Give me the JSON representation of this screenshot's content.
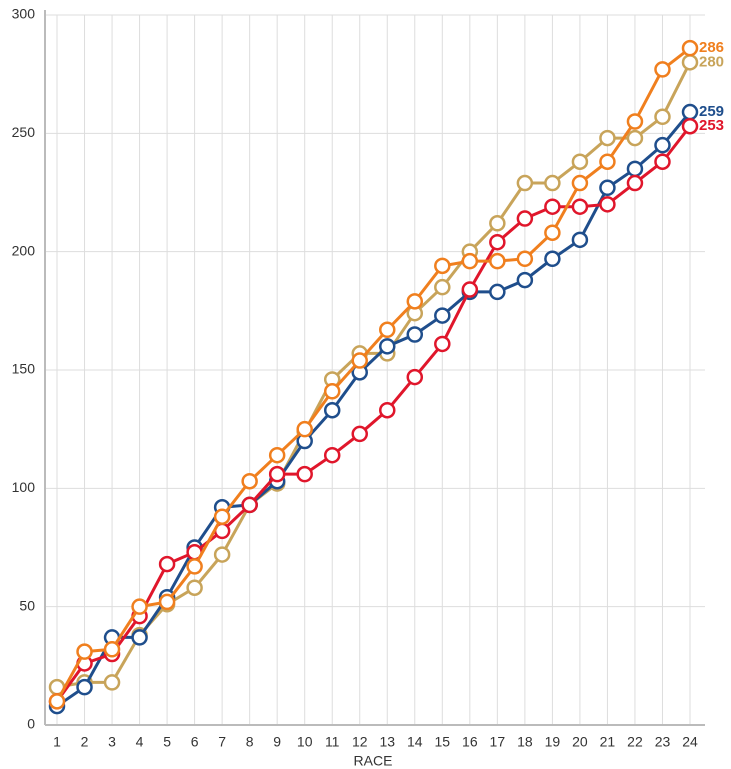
{
  "chart_data": {
    "type": "line",
    "x_label": "RACE",
    "categories": [
      "1",
      "2",
      "3",
      "4",
      "5",
      "6",
      "7",
      "8",
      "9",
      "10",
      "11",
      "12",
      "13",
      "14",
      "15",
      "16",
      "17",
      "18",
      "19",
      "20",
      "21",
      "22",
      "23",
      "24"
    ],
    "ylim": [
      0,
      300
    ],
    "yticks": [
      0,
      50,
      100,
      150,
      200,
      250,
      300
    ],
    "grid": true,
    "series": [
      {
        "color": "#c8a45a",
        "values": [
          16,
          18,
          18,
          38,
          51,
          58,
          72,
          93,
          102,
          124,
          146,
          157,
          157,
          174,
          185,
          200,
          212,
          229,
          229,
          238,
          248,
          248,
          257,
          280
        ]
      },
      {
        "color": "#1f4e8c",
        "values": [
          8,
          16,
          37,
          37,
          54,
          75,
          92,
          93,
          103,
          120,
          133,
          149,
          160,
          165,
          173,
          183,
          183,
          188,
          197,
          205,
          227,
          235,
          245,
          259
        ]
      },
      {
        "color": "#e0162b",
        "values": [
          10,
          26,
          30,
          46,
          68,
          73,
          82,
          93,
          106,
          106,
          114,
          123,
          133,
          147,
          161,
          184,
          204,
          214,
          219,
          219,
          220,
          229,
          238,
          253
        ]
      },
      {
        "color": "#f07f1e",
        "values": [
          10,
          31,
          32,
          50,
          52,
          67,
          88,
          103,
          114,
          125,
          141,
          154,
          167,
          179,
          194,
          196,
          196,
          197,
          208,
          229,
          238,
          255,
          277,
          286
        ]
      }
    ]
  }
}
